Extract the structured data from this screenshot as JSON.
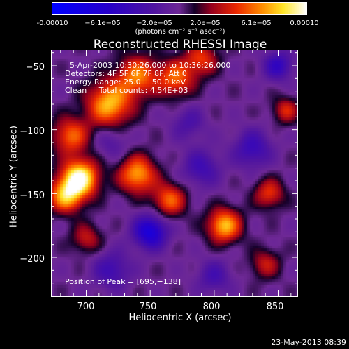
{
  "colorbar": {
    "tick_labels": [
      "-0.00010",
      "−6.1e−05",
      "−2.0e−05",
      "2.0e−05",
      "6.1e−05",
      "0.00010"
    ],
    "range": [
      -0.0001,
      0.0001
    ],
    "unit_label": "(photons cm⁻² s⁻¹ asec⁻²)",
    "colormap": "RHESSI red-temperature (blue=negative, purple=zero, red-yellow-white=positive)"
  },
  "chart_data": {
    "type": "heatmap",
    "title": "Reconstructed RHESSI Image",
    "xlabel": "Heliocentric X (arcsec)",
    "ylabel": "Heliocentric Y (arcsec)",
    "xlim": [
      673,
      865
    ],
    "ylim": [
      -230,
      -38
    ],
    "xticks": [
      700,
      750,
      800,
      850
    ],
    "yticks": [
      -50,
      -100,
      -150,
      -200
    ],
    "xtick_labels": [
      "700",
      "750",
      "800",
      "850"
    ],
    "ytick_labels": [
      "−50",
      "−100",
      "−150",
      "−200"
    ],
    "annotations": {
      "time_range": "5-Apr-2003 10:30:26.000 to 10:36:26.000",
      "detectors": "Detectors: 4F 5F 6F 7F 8F, Att 0",
      "energy": "Energy Range: 25.0 − 50.0 keV",
      "method": "Clean     Total counts: 4.54E+03",
      "peak": "Position of Peak = [695,−138]"
    },
    "sources": [
      {
        "x": 695,
        "y": -138,
        "amp": 1.0,
        "w": 10
      },
      {
        "x": 684,
        "y": -152,
        "amp": 0.7,
        "w": 9
      },
      {
        "x": 718,
        "y": -80,
        "amp": 0.75,
        "w": 12
      },
      {
        "x": 688,
        "y": -105,
        "amp": 0.55,
        "w": 10
      },
      {
        "x": 740,
        "y": -58,
        "amp": 0.6,
        "w": 11
      },
      {
        "x": 770,
        "y": -60,
        "amp": 0.55,
        "w": 10
      },
      {
        "x": 790,
        "y": -45,
        "amp": 0.45,
        "w": 9
      },
      {
        "x": 740,
        "y": -135,
        "amp": 0.7,
        "w": 10
      },
      {
        "x": 765,
        "y": -155,
        "amp": 0.55,
        "w": 9
      },
      {
        "x": 808,
        "y": -175,
        "amp": 0.75,
        "w": 9
      },
      {
        "x": 843,
        "y": -150,
        "amp": 0.45,
        "w": 8
      },
      {
        "x": 856,
        "y": -85,
        "amp": 0.4,
        "w": 7
      },
      {
        "x": 840,
        "y": -205,
        "amp": 0.35,
        "w": 8
      },
      {
        "x": 700,
        "y": -185,
        "amp": 0.35,
        "w": 8
      },
      {
        "x": 750,
        "y": -180,
        "amp": -0.7,
        "w": 9
      },
      {
        "x": 830,
        "y": -115,
        "amp": -0.4,
        "w": 10
      },
      {
        "x": 790,
        "y": -130,
        "amp": -0.35,
        "w": 10
      },
      {
        "x": 720,
        "y": -210,
        "amp": -0.35,
        "w": 10
      },
      {
        "x": 850,
        "y": -50,
        "amp": -0.45,
        "w": 8
      },
      {
        "x": 780,
        "y": -95,
        "amp": -0.25,
        "w": 9
      },
      {
        "x": 720,
        "y": -110,
        "amp": -0.2,
        "w": 9
      },
      {
        "x": 800,
        "y": -215,
        "amp": -0.3,
        "w": 9
      }
    ]
  },
  "footer": {
    "timestamp": "23-May-2013 08:39"
  }
}
